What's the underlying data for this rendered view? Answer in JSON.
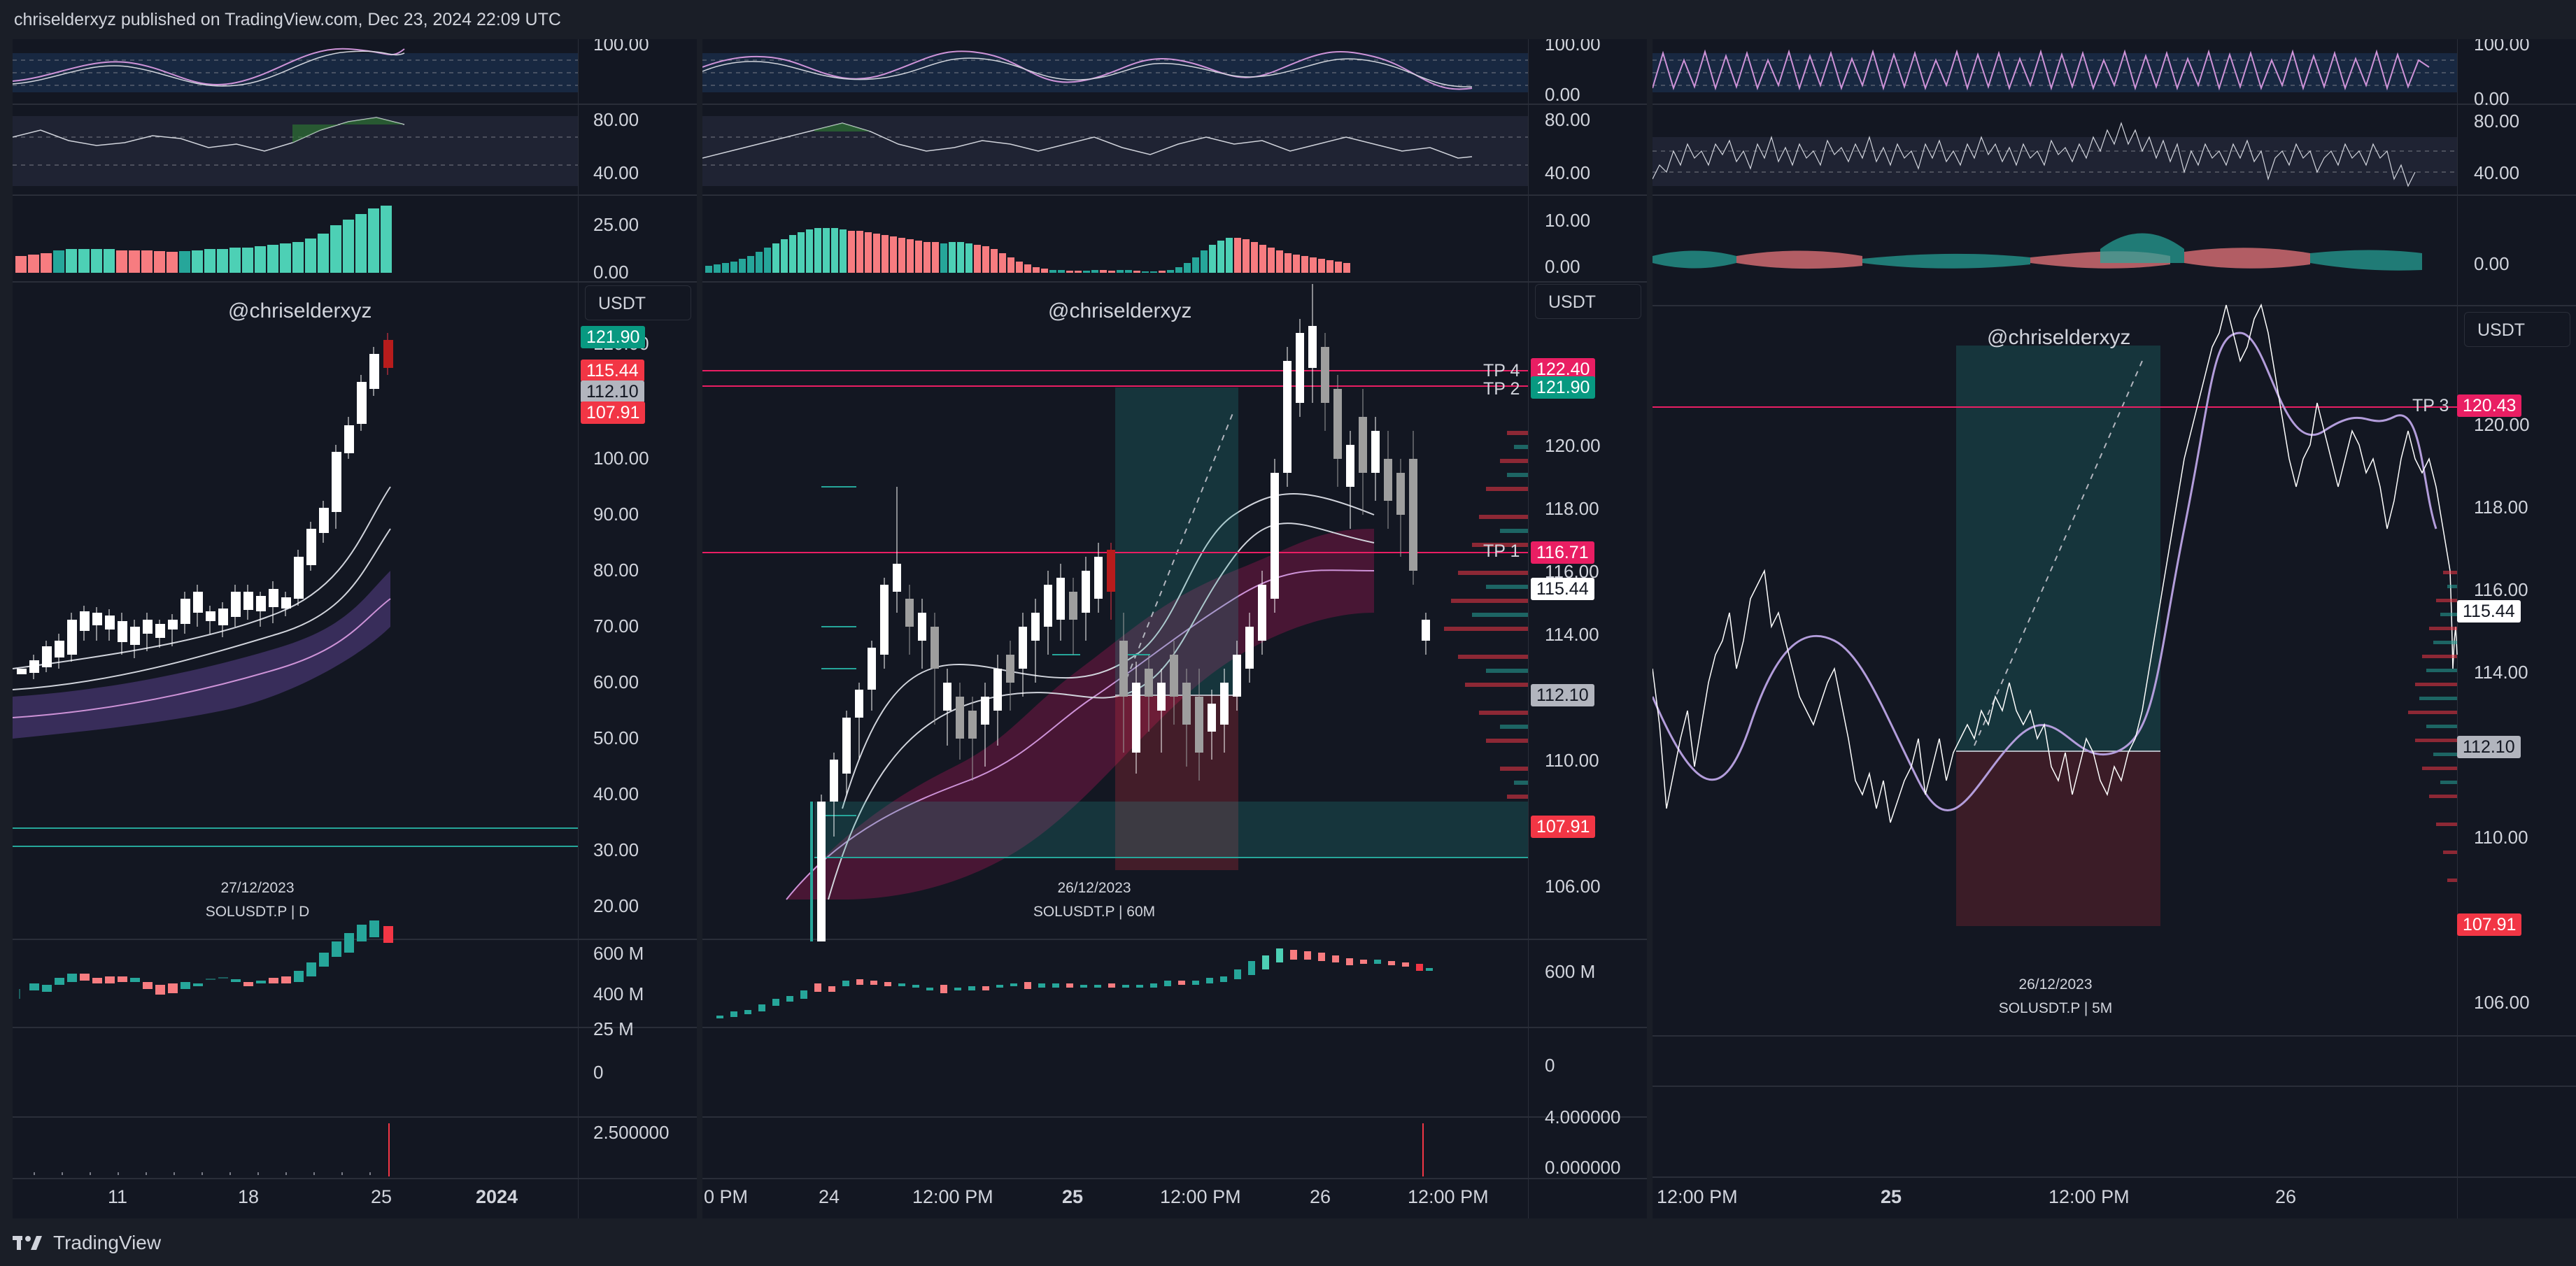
{
  "header": {
    "title": "chriselderxyz published on TradingView.com, Dec 23, 2024 22:09 UTC"
  },
  "footer": {
    "brand": "TradingView"
  },
  "colors": {
    "bull": "#26a69a",
    "bear": "#f23645",
    "pink": "#e91e63",
    "panel_bg": "#131722",
    "page_bg": "#1a1e27",
    "purple": "#b39ddb"
  },
  "panels": [
    {
      "id": "daily",
      "watermark": "@chriselderxyz",
      "date": "27/12/2023",
      "symbol": "SOLUSDT.P | D",
      "currency": "USDT",
      "osc1_axis": [
        "100.00"
      ],
      "osc2_axis": [
        "80.00",
        "40.00"
      ],
      "macd_axis": [
        "25.00",
        "0.00"
      ],
      "price_axis": [
        "120.00",
        "100.00",
        "90.00",
        "80.00",
        "70.00",
        "60.00",
        "50.00",
        "40.00",
        "30.00",
        "20.00"
      ],
      "price_badges": [
        "121.90",
        "115.44",
        "112.10",
        "107.91"
      ],
      "volume_axis": [
        "600 M",
        "400 M"
      ],
      "oi_axis": [
        "25 M",
        "0"
      ],
      "extra_axis": [
        "2.500000"
      ],
      "time_axis": [
        {
          "label": "11",
          "bold": false
        },
        {
          "label": "18",
          "bold": false
        },
        {
          "label": "25",
          "bold": false
        },
        {
          "label": "2024",
          "bold": true
        }
      ]
    },
    {
      "id": "hourly",
      "watermark": "@chriselderxyz",
      "date": "26/12/2023",
      "symbol": "SOLUSDT.P | 60M",
      "currency": "USDT",
      "osc1_axis": [
        "100.00",
        "0.00"
      ],
      "osc2_axis": [
        "80.00",
        "40.00"
      ],
      "macd_axis": [
        "10.00",
        "0.00"
      ],
      "price_axis": [
        "120.00",
        "118.00",
        "116.00",
        "114.00",
        "110.00",
        "106.00"
      ],
      "price_badges": [
        "122.40",
        "121.90",
        "116.71",
        "115.44",
        "112.10",
        "107.91"
      ],
      "tp_labels": [
        "TP 4",
        "TP 2",
        "TP 1"
      ],
      "volume_axis": [
        "600 M"
      ],
      "oi_axis": [
        "0"
      ],
      "extra_axis": [
        "4.000000",
        "0.000000"
      ],
      "time_axis": [
        {
          "label": "0 PM",
          "bold": false
        },
        {
          "label": "24",
          "bold": false
        },
        {
          "label": "12:00 PM",
          "bold": false
        },
        {
          "label": "25",
          "bold": true
        },
        {
          "label": "12:00 PM",
          "bold": false
        },
        {
          "label": "26",
          "bold": false
        },
        {
          "label": "12:00 PM",
          "bold": false
        }
      ]
    },
    {
      "id": "five-min",
      "watermark": "@chriselderxyz",
      "date": "26/12/2023",
      "symbol": "SOLUSDT.P | 5M",
      "currency": "USDT",
      "osc1_axis": [
        "100.00",
        "0.00"
      ],
      "osc2_axis": [
        "80.00",
        "40.00"
      ],
      "macd_axis": [
        "0.00"
      ],
      "price_axis": [
        "120.00",
        "118.00",
        "116.00",
        "114.00",
        "110.00",
        "106.00"
      ],
      "price_badges": [
        "120.43",
        "115.44",
        "112.10",
        "107.91"
      ],
      "tp_labels": [
        "TP 3"
      ],
      "time_axis": [
        {
          "label": "12:00 PM",
          "bold": false
        },
        {
          "label": "25",
          "bold": true
        },
        {
          "label": "12:00 PM",
          "bold": false
        },
        {
          "label": "26",
          "bold": false
        }
      ]
    }
  ]
}
